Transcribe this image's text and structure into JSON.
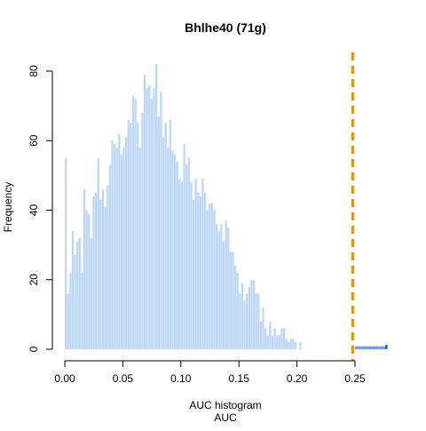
{
  "chart_data": {
    "type": "bar",
    "title": "Bhlhe40 (71g)",
    "subtitle": "",
    "xlabel_lines": [
      "AUC histogram",
      "AUC"
    ],
    "ylabel": "Frequency",
    "xlim": [
      0.0,
      0.28
    ],
    "ylim": [
      0,
      85
    ],
    "x_ticks": [
      0.0,
      0.05,
      0.1,
      0.15,
      0.2,
      0.25
    ],
    "x_tick_labels": [
      "0.00",
      "0.05",
      "0.10",
      "0.15",
      "0.20",
      "0.25"
    ],
    "y_ticks": [
      0,
      20,
      40,
      60,
      80
    ],
    "y_tick_labels": [
      "0",
      "20",
      "40",
      "60",
      "80"
    ],
    "bin_width": 0.002,
    "bin_start": 0.0,
    "values": [
      55,
      16,
      22,
      34,
      27,
      31,
      32,
      22,
      46,
      40,
      39,
      32,
      44,
      45,
      55,
      43,
      46,
      41,
      47,
      53,
      60,
      59,
      58,
      62,
      56,
      58,
      61,
      66,
      65,
      73,
      72,
      65,
      58,
      68,
      79,
      75,
      76,
      72,
      75,
      82,
      67,
      74,
      61,
      65,
      58,
      66,
      57,
      56,
      54,
      49,
      48,
      59,
      53,
      55,
      48,
      43,
      49,
      45,
      44,
      49,
      45,
      40,
      42,
      42,
      40,
      36,
      34,
      36,
      31,
      37,
      35,
      28,
      28,
      24,
      22,
      16,
      19,
      14,
      16,
      18,
      20,
      20,
      16,
      16,
      8,
      12,
      6,
      4,
      8,
      4,
      6,
      4,
      4,
      6,
      6,
      3,
      2,
      3,
      3,
      2,
      0,
      2
    ],
    "bar_color": "#bdd7f5",
    "extra_bars": [
      {
        "x": 0.25,
        "value": 0.6,
        "color": "#6f9fe0"
      },
      {
        "x": 0.252,
        "value": 0.6,
        "color": "#6f9fe0"
      },
      {
        "x": 0.254,
        "value": 0.6,
        "color": "#6f9fe0"
      },
      {
        "x": 0.256,
        "value": 0.6,
        "color": "#6f9fe0"
      },
      {
        "x": 0.258,
        "value": 0.6,
        "color": "#6f9fe0"
      },
      {
        "x": 0.26,
        "value": 0.6,
        "color": "#6f9fe0"
      },
      {
        "x": 0.262,
        "value": 0.6,
        "color": "#6f9fe0"
      },
      {
        "x": 0.264,
        "value": 0.6,
        "color": "#6f9fe0"
      },
      {
        "x": 0.266,
        "value": 0.6,
        "color": "#6f9fe0"
      },
      {
        "x": 0.268,
        "value": 0.6,
        "color": "#6f9fe0"
      },
      {
        "x": 0.27,
        "value": 0.6,
        "color": "#6f9fe0"
      },
      {
        "x": 0.272,
        "value": 0.6,
        "color": "#6f9fe0"
      },
      {
        "x": 0.274,
        "value": 0.6,
        "color": "#6f9fe0"
      },
      {
        "x": 0.276,
        "value": 1,
        "color": "#1e5fbf"
      }
    ],
    "threshold": {
      "x": 0.248,
      "color": "#f28c00",
      "style": "dashed"
    },
    "grid": false,
    "legend": "none"
  }
}
